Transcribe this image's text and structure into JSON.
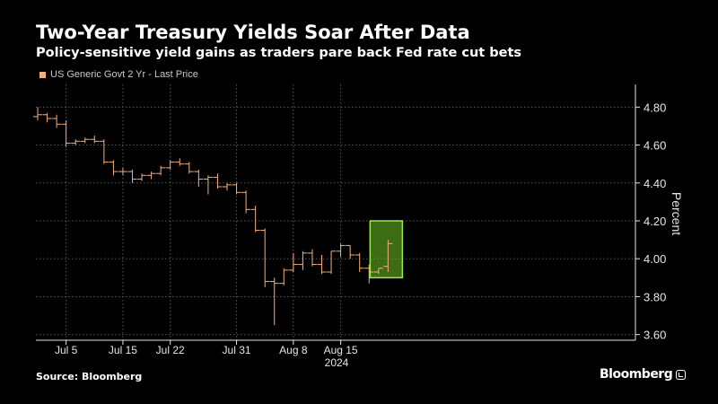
{
  "header": {
    "title": "Two-Year Treasury Yields Soar After Data",
    "subtitle": "Policy-sensitive yield gains as traders pare back Fed rate cut bets"
  },
  "footer": {
    "source": "Source: Bloomberg",
    "brand": "Bloomberg"
  },
  "colors": {
    "background": "#000000",
    "price_bars": "#f5b07a",
    "highlight_fill": "#6fc52a",
    "highlight_border": "#9be84a",
    "grid": "#5a5a5a",
    "axis_text": "#e6e6e6"
  },
  "chart_data": {
    "type": "ohlc",
    "title": "Two-Year Treasury Yields Soar After Data",
    "subtitle": "Policy-sensitive yield gains as traders pare back Fed rate cut bets",
    "legend": [
      "US Generic Govt 2 Yr - Last Price"
    ],
    "legend_position": "top-left",
    "xlabel": "2024",
    "ylabel": "Percent",
    "y_axis_side": "right",
    "ylim": [
      3.57,
      4.92
    ],
    "yticks": [
      3.6,
      3.8,
      4.0,
      4.2,
      4.4,
      4.6,
      4.8
    ],
    "ytick_labels": [
      "3.60",
      "3.80",
      "4.00",
      "4.20",
      "4.40",
      "4.60",
      "4.80"
    ],
    "xticks": [
      {
        "label": "Jul 5",
        "date": "2024-07-05"
      },
      {
        "label": "Jul 15",
        "date": "2024-07-15"
      },
      {
        "label": "Jul 22",
        "date": "2024-07-22"
      },
      {
        "label": "Jul 31",
        "date": "2024-07-31"
      },
      {
        "label": "Aug 8",
        "date": "2024-08-08"
      },
      {
        "label": "Aug 15",
        "date": "2024-08-15"
      }
    ],
    "grid": true,
    "series": [
      {
        "name": "US Generic Govt 2 Yr - Last Price",
        "points": [
          {
            "date": "2024-07-01",
            "open": 4.75,
            "high": 4.8,
            "low": 4.73,
            "close": 4.76
          },
          {
            "date": "2024-07-02",
            "open": 4.76,
            "high": 4.77,
            "low": 4.72,
            "close": 4.74
          },
          {
            "date": "2024-07-03",
            "open": 4.74,
            "high": 4.76,
            "low": 4.69,
            "close": 4.71
          },
          {
            "date": "2024-07-05",
            "open": 4.71,
            "high": 4.73,
            "low": 4.59,
            "close": 4.61
          },
          {
            "date": "2024-07-08",
            "open": 4.61,
            "high": 4.63,
            "low": 4.6,
            "close": 4.62
          },
          {
            "date": "2024-07-09",
            "open": 4.62,
            "high": 4.64,
            "low": 4.61,
            "close": 4.63
          },
          {
            "date": "2024-07-10",
            "open": 4.63,
            "high": 4.65,
            "low": 4.61,
            "close": 4.62
          },
          {
            "date": "2024-07-11",
            "open": 4.62,
            "high": 4.63,
            "low": 4.5,
            "close": 4.51
          },
          {
            "date": "2024-07-12",
            "open": 4.51,
            "high": 4.52,
            "low": 4.44,
            "close": 4.46
          },
          {
            "date": "2024-07-15",
            "open": 4.46,
            "high": 4.48,
            "low": 4.44,
            "close": 4.46
          },
          {
            "date": "2024-07-16",
            "open": 4.46,
            "high": 4.47,
            "low": 4.4,
            "close": 4.42
          },
          {
            "date": "2024-07-17",
            "open": 4.42,
            "high": 4.45,
            "low": 4.41,
            "close": 4.44
          },
          {
            "date": "2024-07-18",
            "open": 4.44,
            "high": 4.46,
            "low": 4.42,
            "close": 4.45
          },
          {
            "date": "2024-07-19",
            "open": 4.45,
            "high": 4.49,
            "low": 4.44,
            "close": 4.48
          },
          {
            "date": "2024-07-22",
            "open": 4.48,
            "high": 4.52,
            "low": 4.47,
            "close": 4.51
          },
          {
            "date": "2024-07-23",
            "open": 4.51,
            "high": 4.53,
            "low": 4.49,
            "close": 4.5
          },
          {
            "date": "2024-07-24",
            "open": 4.5,
            "high": 4.51,
            "low": 4.45,
            "close": 4.46
          },
          {
            "date": "2024-07-25",
            "open": 4.46,
            "high": 4.47,
            "low": 4.38,
            "close": 4.42
          },
          {
            "date": "2024-07-26",
            "open": 4.42,
            "high": 4.44,
            "low": 4.34,
            "close": 4.43
          },
          {
            "date": "2024-07-29",
            "open": 4.43,
            "high": 4.45,
            "low": 4.37,
            "close": 4.38
          },
          {
            "date": "2024-07-30",
            "open": 4.38,
            "high": 4.4,
            "low": 4.36,
            "close": 4.39
          },
          {
            "date": "2024-07-31",
            "open": 4.39,
            "high": 4.4,
            "low": 4.34,
            "close": 4.35
          },
          {
            "date": "2024-08-01",
            "open": 4.35,
            "high": 4.36,
            "low": 4.24,
            "close": 4.26
          },
          {
            "date": "2024-08-02",
            "open": 4.26,
            "high": 4.28,
            "low": 4.14,
            "close": 4.15
          },
          {
            "date": "2024-08-05",
            "open": 4.15,
            "high": 4.16,
            "low": 3.85,
            "close": 3.88
          },
          {
            "date": "2024-08-06",
            "open": 3.88,
            "high": 3.9,
            "low": 3.65,
            "close": 3.87
          },
          {
            "date": "2024-08-07",
            "open": 3.87,
            "high": 3.95,
            "low": 3.86,
            "close": 3.94
          },
          {
            "date": "2024-08-08",
            "open": 3.94,
            "high": 4.03,
            "low": 3.93,
            "close": 3.97
          },
          {
            "date": "2024-08-09",
            "open": 3.97,
            "high": 4.04,
            "low": 3.94,
            "close": 4.03
          },
          {
            "date": "2024-08-12",
            "open": 4.03,
            "high": 4.05,
            "low": 3.96,
            "close": 3.97
          },
          {
            "date": "2024-08-13",
            "open": 3.97,
            "high": 4.02,
            "low": 3.92,
            "close": 3.93
          },
          {
            "date": "2024-08-14",
            "open": 3.93,
            "high": 4.04,
            "low": 3.92,
            "close": 4.04
          },
          {
            "date": "2024-08-15",
            "open": 4.04,
            "high": 4.08,
            "low": 4.01,
            "close": 4.07
          },
          {
            "date": "2024-08-16",
            "open": 4.07,
            "high": 4.07,
            "low": 4.0,
            "close": 4.02
          },
          {
            "date": "2024-08-19",
            "open": 4.02,
            "high": 4.03,
            "low": 3.93,
            "close": 3.95
          },
          {
            "date": "2024-08-20",
            "open": 3.95,
            "high": 3.97,
            "low": 3.87,
            "close": 3.93
          },
          {
            "date": "2024-08-21",
            "open": 3.93,
            "high": 3.95,
            "low": 3.92,
            "close": 3.95
          },
          {
            "date": "2024-08-22",
            "open": 3.96,
            "high": 4.1,
            "low": 3.93,
            "close": 4.08
          }
        ]
      }
    ],
    "highlight": {
      "date": "2024-08-22",
      "y_from": 3.9,
      "y_to": 4.2
    }
  }
}
